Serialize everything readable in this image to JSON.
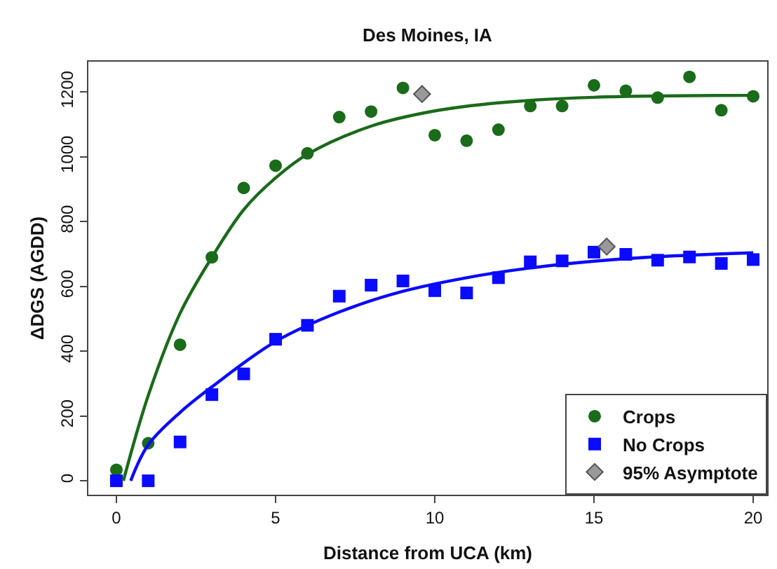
{
  "chart_data": {
    "type": "scatter",
    "title": "Des Moines, IA",
    "xlabel": "Distance from UCA (km)",
    "ylabel": "ΔDGS (AGDD)",
    "xlim": [
      -0.88,
      20.44
    ],
    "xticks": [
      0,
      5,
      10,
      15,
      20
    ],
    "ylim": [
      -43,
      1294
    ],
    "yticks": [
      0,
      200,
      400,
      600,
      800,
      1000,
      1200
    ],
    "legend": "bottom right",
    "series": [
      {
        "name": "Crops",
        "color": "#1a6b1a",
        "marker": "circle",
        "x": [
          0,
          1,
          2,
          3,
          4,
          5,
          6,
          7,
          8,
          9,
          10,
          11,
          12,
          13,
          14,
          15,
          16,
          17,
          18,
          19,
          20
        ],
        "values": [
          34,
          116,
          420,
          690,
          904,
          973,
          1011,
          1123,
          1140,
          1213,
          1067,
          1050,
          1084,
          1157,
          1157,
          1221,
          1204,
          1183,
          1247,
          1144,
          1187
        ]
      },
      {
        "name": "No Crops",
        "color": "#0a0aff",
        "marker": "square",
        "x": [
          0,
          1,
          2,
          3,
          4,
          5,
          6,
          7,
          8,
          9,
          10,
          11,
          12,
          13,
          14,
          15,
          16,
          17,
          18,
          19,
          20
        ],
        "values": [
          0,
          0,
          120,
          266,
          330,
          437,
          480,
          570,
          604,
          617,
          587,
          580,
          627,
          676,
          679,
          706,
          699,
          681,
          691,
          671,
          683
        ]
      },
      {
        "type": "line",
        "color": "#1a6b1a",
        "x": [
          0.22,
          1,
          2,
          3,
          4,
          5,
          6,
          8,
          10,
          12,
          15,
          20
        ],
        "values": [
          0,
          263,
          517,
          690,
          837,
          935,
          1008,
          1095,
          1142,
          1167,
          1184,
          1190
        ]
      },
      {
        "type": "line",
        "color": "#0a0aff",
        "x": [
          0.45,
          1,
          2,
          3,
          5,
          7,
          9,
          11,
          13,
          15,
          17,
          20
        ],
        "values": [
          0,
          111,
          211,
          290,
          430,
          521,
          585,
          627,
          657,
          678,
          692,
          704
        ]
      },
      {
        "name": "95% Asymptote",
        "color": "#999999",
        "marker": "diamond",
        "x": [
          9.6,
          15.4
        ],
        "values": [
          1194,
          723
        ]
      }
    ]
  }
}
